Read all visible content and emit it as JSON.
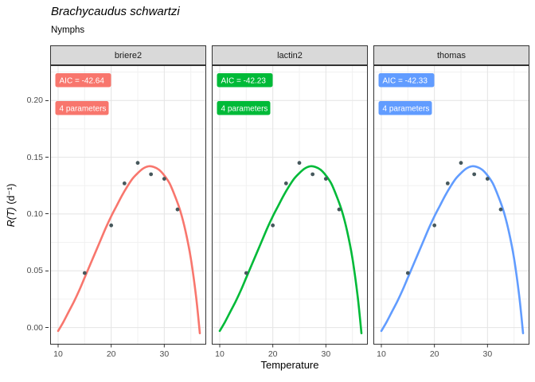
{
  "chart_data": {
    "type": "line",
    "title": "Brachycaudus schwartzi",
    "subtitle": "Nymphs",
    "faceted": true,
    "facet_variable": "model",
    "facets": [
      {
        "name": "briere2",
        "color": "#F8766D",
        "aic_label": "AIC = -42.64",
        "params_label": "4 parameters"
      },
      {
        "name": "lactin2",
        "color": "#00BA38",
        "aic_label": "AIC = -42.23",
        "params_label": "4 parameters"
      },
      {
        "name": "thomas",
        "color": "#619CFF",
        "aic_label": "AIC = -42.33",
        "params_label": "4 parameters"
      }
    ],
    "x_axis": {
      "label": "Temperature",
      "domain": [
        8.5,
        37.9
      ],
      "ticks": [
        {
          "label": "10",
          "value": 10
        },
        {
          "label": "20",
          "value": 20
        },
        {
          "label": "30",
          "value": 30
        }
      ],
      "minor": [
        15,
        25,
        35
      ]
    },
    "y_axis": {
      "label": "R(T) (d⁻¹)",
      "label_italic": "R(T)",
      "label_units": " (d⁻¹)",
      "domain": [
        -0.015,
        0.231
      ],
      "ticks": [
        {
          "label": "0.00",
          "value": 0.0
        },
        {
          "label": "0.05",
          "value": 0.05
        },
        {
          "label": "0.10",
          "value": 0.1
        },
        {
          "label": "0.15",
          "value": 0.15
        },
        {
          "label": "0.20",
          "value": 0.2
        }
      ],
      "minor": [
        0.025,
        0.075,
        0.125,
        0.175,
        0.225
      ]
    },
    "points": [
      [
        15,
        0.048
      ],
      [
        20,
        0.09
      ],
      [
        22.5,
        0.127
      ],
      [
        25,
        0.145
      ],
      [
        27.5,
        0.135
      ],
      [
        30,
        0.131
      ],
      [
        32.5,
        0.104
      ]
    ],
    "point_color": "#46585c",
    "curve": [
      [
        10,
        -0.003
      ],
      [
        11,
        0.005
      ],
      [
        12,
        0.014
      ],
      [
        13,
        0.023
      ],
      [
        14,
        0.033
      ],
      [
        15,
        0.044
      ],
      [
        16,
        0.055
      ],
      [
        17,
        0.066
      ],
      [
        18,
        0.077
      ],
      [
        19,
        0.088
      ],
      [
        20,
        0.098
      ],
      [
        21,
        0.107
      ],
      [
        22,
        0.116
      ],
      [
        23,
        0.124
      ],
      [
        24,
        0.131
      ],
      [
        25,
        0.136
      ],
      [
        26,
        0.14
      ],
      [
        27,
        0.142
      ],
      [
        28,
        0.1415
      ],
      [
        29,
        0.139
      ],
      [
        30,
        0.134
      ],
      [
        31,
        0.127
      ],
      [
        32,
        0.116
      ],
      [
        33,
        0.103
      ],
      [
        34,
        0.085
      ],
      [
        35,
        0.061
      ],
      [
        36,
        0.027
      ],
      [
        36.7,
        -0.005
      ]
    ],
    "style": {
      "strip_fill": "#d9d9d9",
      "strip_border": "#333333",
      "panel_border": "#333333",
      "grid_major": "#e4e4e4",
      "grid_minor": "#f1f1f1",
      "tick_color": "#333333",
      "tick_label_color": "#4d4d4d"
    }
  }
}
